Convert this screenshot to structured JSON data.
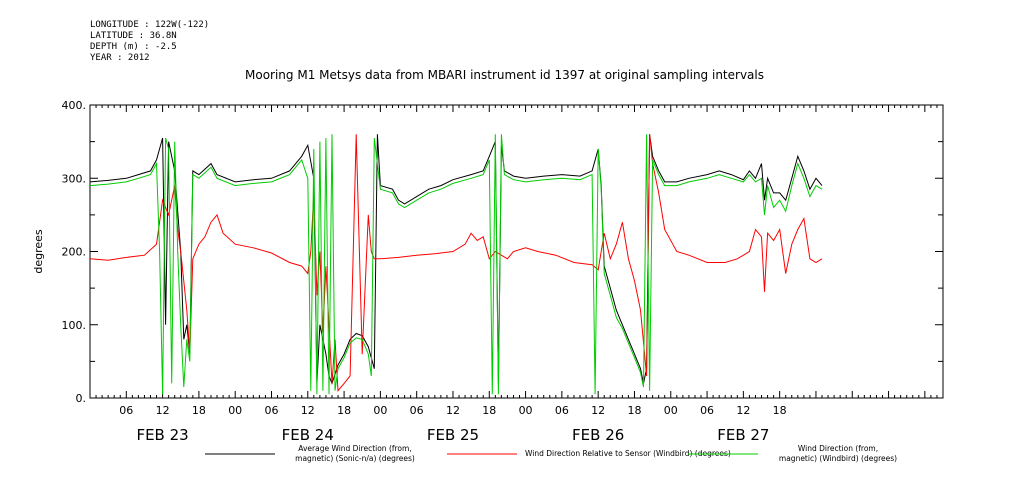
{
  "header": {
    "longitude": "LONGITUDE : 122W(-122)",
    "latitude": "LATITUDE : 36.8N",
    "depth": "DEPTH (m) : -2.5",
    "year": "YEAR : 2012"
  },
  "chart_data": {
    "type": "line",
    "title": "Mooring M1 Metsys data from MBARI instrument id 1397 at original sampling intervals",
    "ylabel": "degrees",
    "ylim": [
      0,
      400
    ],
    "yticks": [
      "0.",
      "100.",
      "200.",
      "300.",
      "400."
    ],
    "xlim_hours": [
      0,
      141
    ],
    "hour_ticks": [
      "06",
      "12",
      "18",
      "00",
      "06",
      "12",
      "18",
      "00",
      "06",
      "12",
      "18",
      "00",
      "06",
      "12",
      "18",
      "00",
      "06",
      "12",
      "18"
    ],
    "day_labels": [
      "FEB 23",
      "FEB 24",
      "FEB 25",
      "FEB 26",
      "FEB 27"
    ],
    "series": [
      {
        "name": "Average Wind Direction (from, magnetic) (Sonic-n/a) (degrees)",
        "legend_lines": [
          "Average Wind Direction (from,",
          "magnetic) (Sonic-n/a) (degrees)"
        ],
        "color": "#000000",
        "points": [
          [
            0,
            295
          ],
          [
            3,
            297
          ],
          [
            6,
            300
          ],
          [
            8,
            305
          ],
          [
            10,
            310
          ],
          [
            11,
            325
          ],
          [
            12,
            355
          ],
          [
            12.5,
            100
          ],
          [
            13,
            350
          ],
          [
            14,
            310
          ],
          [
            15,
            200
          ],
          [
            15.5,
            80
          ],
          [
            16,
            100
          ],
          [
            16.5,
            60
          ],
          [
            17,
            310
          ],
          [
            18,
            305
          ],
          [
            20,
            320
          ],
          [
            21,
            305
          ],
          [
            24,
            295
          ],
          [
            27,
            298
          ],
          [
            30,
            300
          ],
          [
            33,
            310
          ],
          [
            35,
            330
          ],
          [
            36,
            345
          ],
          [
            37,
            300
          ],
          [
            37.5,
            20
          ],
          [
            38,
            100
          ],
          [
            39,
            60
          ],
          [
            39.5,
            30
          ],
          [
            40,
            20
          ],
          [
            41,
            45
          ],
          [
            42,
            60
          ],
          [
            43,
            80
          ],
          [
            44,
            88
          ],
          [
            45,
            85
          ],
          [
            46,
            70
          ],
          [
            47,
            40
          ],
          [
            47.5,
            360
          ],
          [
            48,
            290
          ],
          [
            50,
            285
          ],
          [
            51,
            270
          ],
          [
            52,
            265
          ],
          [
            54,
            275
          ],
          [
            56,
            285
          ],
          [
            58,
            290
          ],
          [
            60,
            298
          ],
          [
            63,
            305
          ],
          [
            65,
            310
          ],
          [
            66,
            330
          ],
          [
            67,
            350
          ],
          [
            67.5,
            20
          ],
          [
            68,
            345
          ],
          [
            68.5,
            310
          ],
          [
            70,
            303
          ],
          [
            72,
            300
          ],
          [
            75,
            303
          ],
          [
            78,
            305
          ],
          [
            81,
            303
          ],
          [
            83,
            310
          ],
          [
            84,
            340
          ],
          [
            84.5,
            290
          ],
          [
            85,
            180
          ],
          [
            86,
            150
          ],
          [
            87,
            120
          ],
          [
            88,
            100
          ],
          [
            89,
            80
          ],
          [
            90,
            60
          ],
          [
            91,
            40
          ],
          [
            91.5,
            20
          ],
          [
            92,
            40
          ],
          [
            92.5,
            360
          ],
          [
            93,
            330
          ],
          [
            94,
            310
          ],
          [
            95,
            295
          ],
          [
            97,
            295
          ],
          [
            99,
            300
          ],
          [
            102,
            305
          ],
          [
            104,
            310
          ],
          [
            106,
            305
          ],
          [
            108,
            298
          ],
          [
            109,
            310
          ],
          [
            110,
            300
          ],
          [
            111,
            320
          ],
          [
            111.5,
            270
          ],
          [
            112,
            300
          ],
          [
            113,
            280
          ],
          [
            114,
            280
          ],
          [
            115,
            270
          ],
          [
            116,
            300
          ],
          [
            117,
            330
          ],
          [
            118,
            310
          ],
          [
            119,
            285
          ],
          [
            120,
            300
          ],
          [
            121,
            290
          ]
        ]
      },
      {
        "name": "Wind Direction Relative to Sensor (Windbird) (degrees)",
        "legend_lines": [
          "Wind Direction Relative to Sensor (Windbird) (degrees)"
        ],
        "color": "#ff0000",
        "points": [
          [
            0,
            190
          ],
          [
            3,
            188
          ],
          [
            6,
            192
          ],
          [
            9,
            195
          ],
          [
            11,
            210
          ],
          [
            12,
            270
          ],
          [
            13,
            250
          ],
          [
            14,
            290
          ],
          [
            14.5,
            230
          ],
          [
            15,
            200
          ],
          [
            16,
            120
          ],
          [
            16.5,
            60
          ],
          [
            17,
            190
          ],
          [
            18,
            210
          ],
          [
            19,
            220
          ],
          [
            20,
            240
          ],
          [
            21,
            250
          ],
          [
            22,
            225
          ],
          [
            24,
            210
          ],
          [
            27,
            205
          ],
          [
            30,
            198
          ],
          [
            33,
            185
          ],
          [
            35,
            180
          ],
          [
            36,
            170
          ],
          [
            36.5,
            200
          ],
          [
            37,
            280
          ],
          [
            37.5,
            140
          ],
          [
            38,
            200
          ],
          [
            38.5,
            90
          ],
          [
            39,
            180
          ],
          [
            40,
            20
          ],
          [
            40.5,
            80
          ],
          [
            41,
            10
          ],
          [
            42,
            20
          ],
          [
            43,
            30
          ],
          [
            44,
            360
          ],
          [
            45,
            60
          ],
          [
            46,
            250
          ],
          [
            46.5,
            200
          ],
          [
            47,
            190
          ],
          [
            48,
            190
          ],
          [
            51,
            192
          ],
          [
            54,
            195
          ],
          [
            57,
            197
          ],
          [
            60,
            200
          ],
          [
            62,
            210
          ],
          [
            63,
            225
          ],
          [
            64,
            215
          ],
          [
            65,
            220
          ],
          [
            66,
            190
          ],
          [
            67,
            200
          ],
          [
            68,
            195
          ],
          [
            69,
            190
          ],
          [
            70,
            200
          ],
          [
            72,
            205
          ],
          [
            74,
            200
          ],
          [
            77,
            195
          ],
          [
            80,
            185
          ],
          [
            83,
            182
          ],
          [
            84,
            175
          ],
          [
            85,
            225
          ],
          [
            86,
            190
          ],
          [
            87,
            210
          ],
          [
            88,
            240
          ],
          [
            89,
            190
          ],
          [
            90,
            160
          ],
          [
            91,
            120
          ],
          [
            92,
            30
          ],
          [
            92.5,
            360
          ],
          [
            93,
            320
          ],
          [
            94,
            280
          ],
          [
            95,
            230
          ],
          [
            97,
            200
          ],
          [
            99,
            195
          ],
          [
            102,
            185
          ],
          [
            105,
            185
          ],
          [
            107,
            190
          ],
          [
            108,
            195
          ],
          [
            109,
            200
          ],
          [
            110,
            230
          ],
          [
            111,
            220
          ],
          [
            111.5,
            145
          ],
          [
            112,
            225
          ],
          [
            113,
            215
          ],
          [
            114,
            230
          ],
          [
            115,
            170
          ],
          [
            116,
            210
          ],
          [
            117,
            230
          ],
          [
            118,
            245
          ],
          [
            119,
            190
          ],
          [
            120,
            185
          ],
          [
            121,
            190
          ]
        ]
      },
      {
        "name": "Wind Direction (from, magnetic) (Windbird) (degrees)",
        "legend_lines": [
          "Wind Direction (from,",
          "magnetic) (Windbird) (degrees)"
        ],
        "color": "#00cc00",
        "points": [
          [
            0,
            290
          ],
          [
            3,
            292
          ],
          [
            6,
            295
          ],
          [
            8,
            300
          ],
          [
            10,
            305
          ],
          [
            11,
            320
          ],
          [
            11.5,
            200
          ],
          [
            12,
            5
          ],
          [
            12.5,
            355
          ],
          [
            13,
            340
          ],
          [
            13.5,
            20
          ],
          [
            14,
            350
          ],
          [
            14.5,
            200
          ],
          [
            15,
            100
          ],
          [
            15.5,
            15
          ],
          [
            16,
            80
          ],
          [
            16.5,
            50
          ],
          [
            17,
            305
          ],
          [
            18,
            300
          ],
          [
            20,
            315
          ],
          [
            21,
            300
          ],
          [
            24,
            290
          ],
          [
            27,
            293
          ],
          [
            30,
            295
          ],
          [
            33,
            305
          ],
          [
            35,
            325
          ],
          [
            36,
            300
          ],
          [
            36.5,
            10
          ],
          [
            37,
            340
          ],
          [
            37.5,
            5
          ],
          [
            38,
            350
          ],
          [
            38.5,
            10
          ],
          [
            39,
            355
          ],
          [
            39.5,
            5
          ],
          [
            40,
            360
          ],
          [
            40.5,
            10
          ],
          [
            41,
            40
          ],
          [
            42,
            55
          ],
          [
            43,
            75
          ],
          [
            44,
            82
          ],
          [
            45,
            80
          ],
          [
            46,
            60
          ],
          [
            46.5,
            30
          ],
          [
            47,
            355
          ],
          [
            48,
            285
          ],
          [
            50,
            280
          ],
          [
            51,
            265
          ],
          [
            52,
            260
          ],
          [
            54,
            270
          ],
          [
            56,
            280
          ],
          [
            58,
            285
          ],
          [
            60,
            293
          ],
          [
            63,
            300
          ],
          [
            65,
            305
          ],
          [
            66,
            325
          ],
          [
            66.5,
            5
          ],
          [
            67,
            360
          ],
          [
            67.5,
            5
          ],
          [
            68,
            360
          ],
          [
            68.5,
            305
          ],
          [
            70,
            298
          ],
          [
            72,
            295
          ],
          [
            75,
            298
          ],
          [
            78,
            300
          ],
          [
            81,
            298
          ],
          [
            83,
            305
          ],
          [
            83.5,
            5
          ],
          [
            84,
            340
          ],
          [
            84.5,
            285
          ],
          [
            85,
            170
          ],
          [
            86,
            140
          ],
          [
            87,
            110
          ],
          [
            88,
            95
          ],
          [
            89,
            75
          ],
          [
            90,
            55
          ],
          [
            91,
            35
          ],
          [
            91.5,
            15
          ],
          [
            92,
            360
          ],
          [
            92.5,
            10
          ],
          [
            93,
            325
          ],
          [
            94,
            305
          ],
          [
            95,
            290
          ],
          [
            97,
            290
          ],
          [
            99,
            295
          ],
          [
            102,
            300
          ],
          [
            104,
            305
          ],
          [
            106,
            300
          ],
          [
            108,
            295
          ],
          [
            109,
            305
          ],
          [
            110,
            295
          ],
          [
            111,
            300
          ],
          [
            111.5,
            250
          ],
          [
            112,
            290
          ],
          [
            113,
            260
          ],
          [
            114,
            270
          ],
          [
            115,
            255
          ],
          [
            116,
            290
          ],
          [
            117,
            320
          ],
          [
            118,
            300
          ],
          [
            119,
            275
          ],
          [
            120,
            290
          ],
          [
            121,
            285
          ]
        ]
      }
    ]
  }
}
